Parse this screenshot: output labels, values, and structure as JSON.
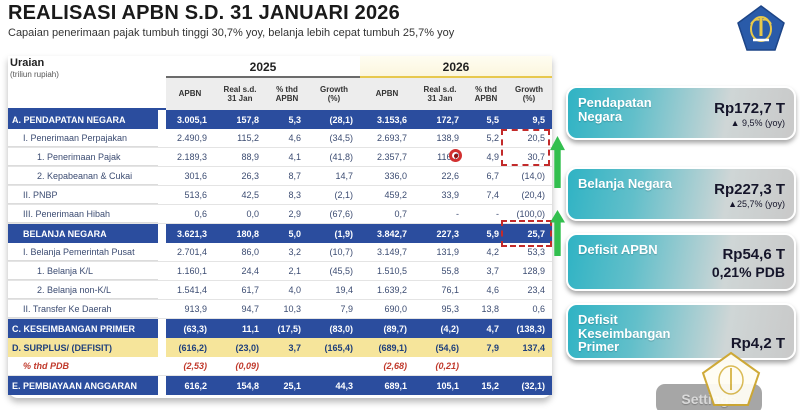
{
  "header": {
    "title": "REALISASI APBN S.D. 31 JANUARI 2026",
    "subtitle": "Capaian penerimaan pajak tumbuh tinggi 30,7% yoy, belanja lebih cepat tumbuh 25,7% yoy"
  },
  "table": {
    "uraian_label": "Uraian",
    "uraian_sub": "(triliun rupiah)",
    "year_groups": [
      "2025",
      "2026"
    ],
    "columns": [
      "APBN",
      "Real s.d.\n31 Jan",
      "% thd\nAPBN",
      "Growth\n(%)"
    ],
    "rows": [
      {
        "label": "A. PENDAPATAN NEGARA",
        "style": "header-blue",
        "indent": 0,
        "values": [
          "3.005,1",
          "157,8",
          "5,3",
          "(28,1)",
          "3.153,6",
          "172,7",
          "5,5",
          "9,5"
        ]
      },
      {
        "label": "I. Penerimaan Perpajakan",
        "style": "normal",
        "indent": 1,
        "values": [
          "2.490,9",
          "115,2",
          "4,6",
          "(34,5)",
          "2.693,7",
          "138,9",
          "5,2",
          "20,5"
        ]
      },
      {
        "label": "1. Penerimaan Pajak",
        "style": "normal",
        "indent": 2,
        "values": [
          "2.189,3",
          "88,9",
          "4,1",
          "(41,8)",
          "2.357,7",
          "116,2",
          "4,9",
          "30,7"
        ]
      },
      {
        "label": "2. Kepabeanan & Cukai",
        "style": "normal",
        "indent": 2,
        "values": [
          "301,6",
          "26,3",
          "8,7",
          "14,7",
          "336,0",
          "22,6",
          "6,7",
          "(14,0)"
        ]
      },
      {
        "label": "II. PNBP",
        "style": "normal",
        "indent": 1,
        "values": [
          "513,6",
          "42,5",
          "8,3",
          "(2,1)",
          "459,2",
          "33,9",
          "7,4",
          "(20,4)"
        ]
      },
      {
        "label": "III. Penerimaan Hibah",
        "style": "normal",
        "indent": 1,
        "values": [
          "0,6",
          "0,0",
          "2,9",
          "(67,6)",
          "0,7",
          "-",
          "-",
          "(100,0)"
        ]
      },
      {
        "label": "BELANJA NEGARA",
        "style": "header-blue",
        "indent": 1,
        "values": [
          "3.621,3",
          "180,8",
          "5,0",
          "(1,9)",
          "3.842,7",
          "227,3",
          "5,9",
          "25,7"
        ]
      },
      {
        "label": "I. Belanja Pemerintah Pusat",
        "style": "normal",
        "indent": 1,
        "values": [
          "2.701,4",
          "86,0",
          "3,2",
          "(10,7)",
          "3.149,7",
          "131,9",
          "4,2",
          "53,3"
        ]
      },
      {
        "label": "1. Belanja K/L",
        "style": "normal",
        "indent": 2,
        "values": [
          "1.160,1",
          "24,4",
          "2,1",
          "(45,5)",
          "1.510,5",
          "55,8",
          "3,7",
          "128,9"
        ]
      },
      {
        "label": "2. Belanja non-K/L",
        "style": "normal",
        "indent": 2,
        "values": [
          "1.541,4",
          "61,7",
          "4,0",
          "19,4",
          "1.639,2",
          "76,1",
          "4,6",
          "23,4"
        ]
      },
      {
        "label": "II. Transfer Ke Daerah",
        "style": "normal",
        "indent": 1,
        "values": [
          "913,9",
          "94,7",
          "10,3",
          "7,9",
          "690,0",
          "95,3",
          "13,8",
          "0,6"
        ]
      },
      {
        "label": "C. KESEIMBANGAN PRIMER",
        "style": "header-blue",
        "indent": 0,
        "values": [
          "(63,3)",
          "11,1",
          "(17,5)",
          "(83,0)",
          "(89,7)",
          "(4,2)",
          "4,7",
          "(138,3)"
        ]
      },
      {
        "label": "D. SURPLUS/ (DEFISIT)",
        "style": "yellow",
        "indent": 0,
        "values": [
          "(616,2)",
          "(23,0)",
          "3,7",
          "(165,4)",
          "(689,1)",
          "(54,6)",
          "7,9",
          "137,4"
        ]
      },
      {
        "label": "% thd PDB",
        "style": "red-italic",
        "indent": 1,
        "values": [
          "(2,53)",
          "(0,09)",
          "",
          "",
          "(2,68)",
          "(0,21)",
          "",
          ""
        ]
      },
      {
        "label": "E. PEMBIAYAAN ANGGARAN",
        "style": "header-blue",
        "indent": 0,
        "values": [
          "616,2",
          "154,8",
          "25,1",
          "44,3",
          "689,1",
          "105,1",
          "15,2",
          "(32,1)"
        ]
      }
    ]
  },
  "cards": [
    {
      "title": "Pendapatan Negara",
      "value": "Rp172,7 T",
      "sub": "▲ 9,5% (yoy)"
    },
    {
      "title": "Belanja Negara",
      "value": "Rp227,3 T",
      "sub": "▲25,7% (yoy)"
    },
    {
      "title": "Defisit APBN",
      "value": "Rp54,6 T",
      "sub": "0,21% PDB"
    },
    {
      "title": "Defisit Keseimbangan Primer",
      "value": "Rp4,2 T",
      "sub": ""
    }
  ],
  "settings_label": "Settings",
  "colors": {
    "navy_bar": "#2b4d9e",
    "yellow_row": "#f6e59b",
    "card_teal": "#2fb3c4",
    "green_arrow": "#33bf4f",
    "annotation_red": "#c22a2a",
    "pdb_red": "#c0392b",
    "year2026_underline": "#e7c84e"
  }
}
